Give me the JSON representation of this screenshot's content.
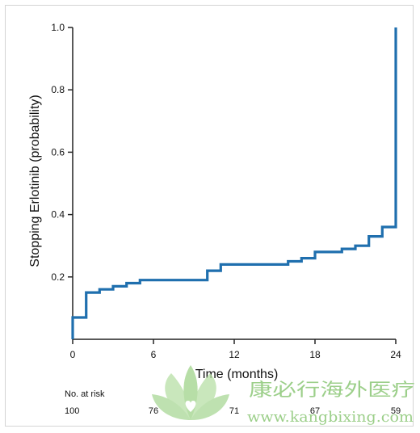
{
  "chart_data": {
    "type": "line",
    "step": true,
    "xlabel": "Time (months)",
    "ylabel": "Stopping Erlotinib (probability)",
    "xlim": [
      0,
      24
    ],
    "ylim": [
      0,
      1.0
    ],
    "x_ticks": [
      "0",
      "6",
      "12",
      "18",
      "24"
    ],
    "x_tick_values": [
      0,
      6,
      12,
      18,
      24
    ],
    "y_ticks": [
      "0.2",
      "0.4",
      "0.6",
      "0.8",
      "1.0"
    ],
    "y_tick_values": [
      0.2,
      0.4,
      0.6,
      0.8,
      1.0
    ],
    "grid": false,
    "series_color": "#1f6fae",
    "points": [
      [
        0,
        0.0
      ],
      [
        0,
        0.07
      ],
      [
        1,
        0.07
      ],
      [
        1,
        0.15
      ],
      [
        2,
        0.15
      ],
      [
        2,
        0.16
      ],
      [
        3,
        0.16
      ],
      [
        3,
        0.17
      ],
      [
        4,
        0.17
      ],
      [
        4,
        0.18
      ],
      [
        5,
        0.18
      ],
      [
        5,
        0.19
      ],
      [
        10,
        0.19
      ],
      [
        10,
        0.22
      ],
      [
        11,
        0.22
      ],
      [
        11,
        0.24
      ],
      [
        16,
        0.24
      ],
      [
        16,
        0.25
      ],
      [
        17,
        0.25
      ],
      [
        17,
        0.26
      ],
      [
        18,
        0.26
      ],
      [
        18,
        0.28
      ],
      [
        20,
        0.28
      ],
      [
        20,
        0.29
      ],
      [
        21,
        0.29
      ],
      [
        21,
        0.3
      ],
      [
        22,
        0.3
      ],
      [
        22,
        0.33
      ],
      [
        23,
        0.33
      ],
      [
        23,
        0.36
      ],
      [
        24,
        0.36
      ],
      [
        24,
        1.0
      ]
    ],
    "at_risk": {
      "title": "No. at risk",
      "values": [
        "100",
        "76",
        "71",
        "67",
        "59"
      ]
    }
  },
  "watermark": {
    "text_cn": "康必行海外医疗",
    "url": "www.kangbixing.com",
    "color": "#9ccf8a"
  }
}
